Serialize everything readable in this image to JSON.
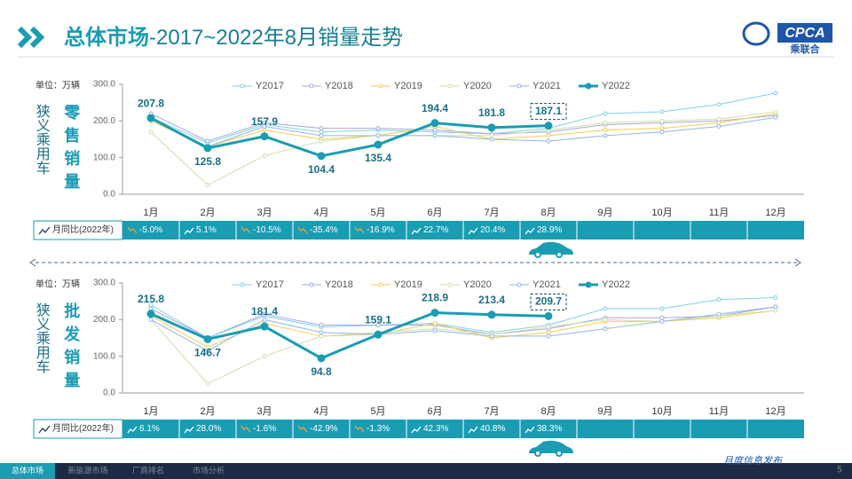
{
  "header": {
    "title_main": "总体市场",
    "title_rest": "-2017~2022年8月销量走势",
    "logo_text": "CPCA",
    "logo_sub": "乘联合"
  },
  "chart_data": [
    {
      "type": "line",
      "unit_label": "单位：万辆",
      "side_label": "狭义乘用车",
      "metric_label": "零售销量",
      "categories": [
        "1月",
        "2月",
        "3月",
        "4月",
        "5月",
        "6月",
        "7月",
        "8月",
        "9月",
        "10月",
        "11月",
        "12月"
      ],
      "series": [
        {
          "name": "Y2017",
          "color": "#7fd0ea",
          "values": [
            210,
            140,
            190,
            170,
            175,
            170,
            165,
            180,
            220,
            225,
            245,
            276
          ]
        },
        {
          "name": "Y2018",
          "color": "#a4a8de",
          "values": [
            220,
            145,
            195,
            180,
            180,
            175,
            165,
            170,
            190,
            195,
            200,
            215
          ]
        },
        {
          "name": "Y2019",
          "color": "#f5cd4e",
          "values": [
            200,
            130,
            175,
            150,
            160,
            185,
            150,
            160,
            175,
            180,
            195,
            220
          ]
        },
        {
          "name": "Y2020",
          "color": "#cfe0a8",
          "values": [
            170,
            25,
            105,
            145,
            160,
            160,
            160,
            175,
            195,
            200,
            205,
            225
          ]
        },
        {
          "name": "Y2021",
          "color": "#93b6e6",
          "values": [
            205,
            130,
            185,
            160,
            160,
            160,
            150,
            145,
            160,
            170,
            185,
            210
          ]
        },
        {
          "name": "Y2022",
          "color": "#1a9cb3",
          "values": [
            207.8,
            125.8,
            157.9,
            104.4,
            135.4,
            194.4,
            181.8,
            187.1,
            null,
            null,
            null,
            null
          ]
        }
      ],
      "ylim": [
        0,
        300
      ],
      "yticks": [
        {
          "value": 0,
          "label": "0.0"
        },
        {
          "value": 100,
          "label": "100.0"
        },
        {
          "value": 200,
          "label": "200.0"
        },
        {
          "value": 300,
          "label": "300.0"
        }
      ],
      "grid": false,
      "legend": "top",
      "yoy_label": "月同比(2022年)",
      "yoy": [
        "-5.0%",
        "5.1%",
        "-10.5%",
        "-35.4%",
        "-16.9%",
        "22.7%",
        "20.4%",
        "28.9%"
      ]
    },
    {
      "type": "line",
      "unit_label": "单位：万辆",
      "side_label": "狭义乘用车",
      "metric_label": "批发销量",
      "categories": [
        "1月",
        "2月",
        "3月",
        "4月",
        "5月",
        "6月",
        "7月",
        "8月",
        "9月",
        "10月",
        "11月",
        "12月"
      ],
      "series": [
        {
          "name": "Y2017",
          "color": "#7fd0ea",
          "values": [
            240,
            150,
            210,
            180,
            185,
            190,
            165,
            185,
            230,
            230,
            255,
            260
          ]
        },
        {
          "name": "Y2018",
          "color": "#a4a8de",
          "values": [
            230,
            150,
            215,
            185,
            185,
            185,
            160,
            175,
            205,
            205,
            210,
            235
          ]
        },
        {
          "name": "Y2019",
          "color": "#f5cd4e",
          "values": [
            210,
            125,
            190,
            155,
            160,
            190,
            150,
            165,
            195,
            195,
            205,
            225
          ]
        },
        {
          "name": "Y2020",
          "color": "#cfe0a8",
          "values": [
            200,
            25,
            100,
            155,
            165,
            175,
            160,
            180,
            200,
            195,
            210,
            225
          ]
        },
        {
          "name": "Y2021",
          "color": "#93b6e6",
          "values": [
            200,
            115,
            200,
            165,
            160,
            170,
            155,
            155,
            175,
            195,
            215,
            235
          ]
        },
        {
          "name": "Y2022",
          "color": "#1a9cb3",
          "values": [
            215.8,
            146.7,
            181.4,
            94.8,
            159.1,
            218.9,
            213.4,
            209.7,
            null,
            null,
            null,
            null
          ]
        }
      ],
      "ylim": [
        0,
        300
      ],
      "yticks": [
        {
          "value": 0,
          "label": "0.0"
        },
        {
          "value": 100,
          "label": "100.0"
        },
        {
          "value": 200,
          "label": "200.0"
        },
        {
          "value": 300,
          "label": "300.0"
        }
      ],
      "grid": false,
      "legend": "top",
      "yoy_label": "月同比(2022年)",
      "yoy": [
        "6.1%",
        "28.0%",
        "-1.6%",
        "-42.9%",
        "-1.3%",
        "42.3%",
        "40.8%",
        "38.3%"
      ]
    }
  ],
  "footer": {
    "tabs": [
      "总体市场",
      "新能源市场",
      "厂商排名",
      "市场分析"
    ],
    "note": "月度信息发布",
    "page": "5"
  }
}
